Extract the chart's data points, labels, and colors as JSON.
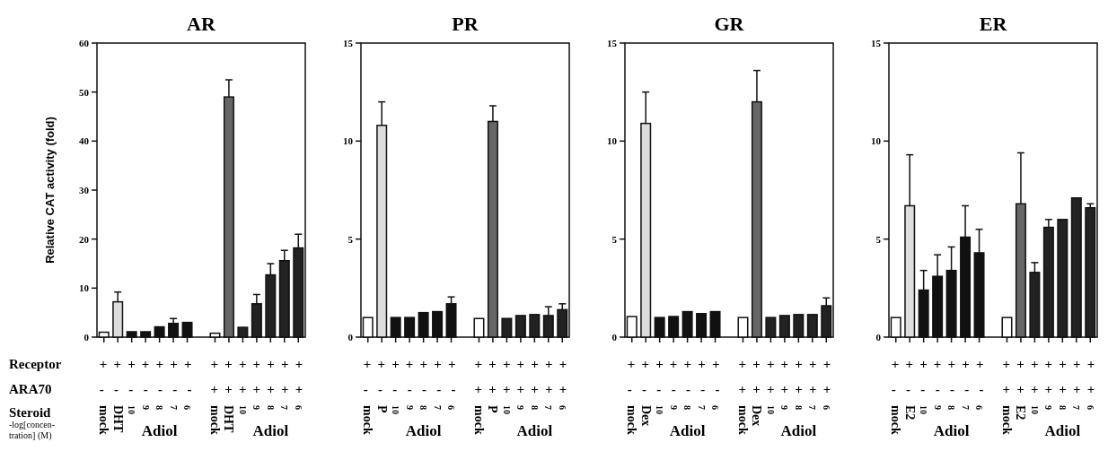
{
  "chart_data": [
    {
      "type": "bar",
      "title": "AR",
      "ylabel": "Relative CAT activity (fold)",
      "categories": [
        "mock",
        "DHT",
        "10",
        "9",
        "8",
        "7",
        "6",
        "mock",
        "DHT",
        "10",
        "9",
        "8",
        "7",
        "6"
      ],
      "values": [
        1.0,
        7.2,
        1.1,
        1.1,
        2.1,
        2.8,
        3.0,
        0.8,
        49,
        2.0,
        6.8,
        12.7,
        15.6,
        18.2
      ],
      "colors": [
        "#ffffff",
        "#dddddd",
        "#111111",
        "#111111",
        "#111111",
        "#111111",
        "#111111",
        "#ffffff",
        "#666666",
        "#222222",
        "#222222",
        "#222222",
        "#222222",
        "#222222"
      ],
      "errors": [
        null,
        [
          7.2,
          9.2
        ],
        null,
        null,
        null,
        [
          2.8,
          3.8
        ],
        null,
        null,
        [
          49,
          52.5
        ],
        null,
        [
          6.8,
          8.7
        ],
        [
          12.7,
          15
        ],
        [
          15.6,
          17.7
        ],
        [
          18.2,
          21
        ]
      ],
      "ylim": [
        0,
        60
      ],
      "yticks": [
        0,
        10,
        20,
        30,
        40,
        50,
        60
      ],
      "annotations": [
        "+ + + + + + +",
        "+ + + + + + +",
        "- - - - - - -",
        "+ + + + + + +",
        "Adiol",
        "Adiol",
        "Receptor",
        "ARA70",
        "Steroid",
        "-log[concen-tration] (M)"
      ]
    },
    {
      "type": "bar",
      "title": "PR",
      "categories": [
        "mock",
        "P",
        "10",
        "9",
        "8",
        "7",
        "6",
        "mock",
        "P",
        "10",
        "9",
        "8",
        "7",
        "6"
      ],
      "values": [
        1.0,
        10.8,
        1.0,
        1.0,
        1.25,
        1.3,
        1.7,
        0.95,
        11.0,
        0.95,
        1.1,
        1.15,
        1.1,
        1.4
      ],
      "colors": [
        "#ffffff",
        "#dddddd",
        "#111111",
        "#111111",
        "#111111",
        "#111111",
        "#111111",
        "#ffffff",
        "#666666",
        "#222222",
        "#222222",
        "#222222",
        "#222222",
        "#222222"
      ],
      "errors": [
        null,
        [
          10.8,
          12
        ],
        null,
        null,
        null,
        null,
        [
          1.7,
          2.05
        ],
        null,
        [
          11.0,
          11.8
        ],
        null,
        null,
        null,
        [
          1.1,
          1.55
        ],
        [
          1.4,
          1.7
        ]
      ],
      "ylim": [
        0,
        15
      ],
      "yticks": [
        0,
        5,
        10,
        15
      ],
      "annotations": [
        "+ + + + + + +",
        "+ + + + + + +",
        "- - - - - - -",
        "+ + + + + + +",
        "Adiol",
        "Adiol"
      ]
    },
    {
      "type": "bar",
      "title": "GR",
      "categories": [
        "mock",
        "Dex",
        "10",
        "9",
        "8",
        "7",
        "6",
        "mock",
        "Dex",
        "10",
        "9",
        "8",
        "7",
        "6"
      ],
      "values": [
        1.05,
        10.9,
        1.0,
        1.05,
        1.3,
        1.2,
        1.3,
        1.0,
        12.0,
        1.0,
        1.1,
        1.15,
        1.15,
        1.6
      ],
      "colors": [
        "#ffffff",
        "#dddddd",
        "#111111",
        "#111111",
        "#111111",
        "#111111",
        "#111111",
        "#ffffff",
        "#666666",
        "#222222",
        "#222222",
        "#222222",
        "#222222",
        "#222222"
      ],
      "errors": [
        null,
        [
          10.9,
          12.5
        ],
        null,
        null,
        null,
        null,
        null,
        null,
        [
          12.0,
          13.6
        ],
        null,
        null,
        null,
        null,
        [
          1.6,
          2.0
        ]
      ],
      "ylim": [
        0,
        15
      ],
      "yticks": [
        0,
        5,
        10,
        15
      ],
      "annotations": [
        "+ + + + + + +",
        "+ + + + + + +",
        "- - - - - - -",
        "+ + + + + + +",
        "Adiol",
        "Adiol"
      ]
    },
    {
      "type": "bar",
      "title": "ER",
      "categories": [
        "mock",
        "E2",
        "10",
        "9",
        "8",
        "7",
        "6",
        "mock",
        "E2",
        "10",
        "9",
        "8",
        "7",
        "6"
      ],
      "values": [
        1.0,
        6.7,
        2.4,
        3.1,
        3.4,
        5.1,
        4.3,
        1.0,
        6.8,
        3.3,
        5.6,
        6.0,
        7.1,
        6.6
      ],
      "colors": [
        "#ffffff",
        "#dddddd",
        "#111111",
        "#111111",
        "#111111",
        "#111111",
        "#111111",
        "#ffffff",
        "#666666",
        "#222222",
        "#222222",
        "#222222",
        "#222222",
        "#222222"
      ],
      "errors": [
        null,
        [
          6.7,
          9.3
        ],
        [
          2.4,
          3.4
        ],
        [
          3.1,
          4.2
        ],
        [
          3.4,
          4.6
        ],
        [
          5.1,
          6.7
        ],
        [
          4.3,
          5.5
        ],
        null,
        [
          6.8,
          9.4
        ],
        [
          3.3,
          3.8
        ],
        [
          5.6,
          6.0
        ],
        null,
        null,
        [
          6.6,
          6.8
        ]
      ],
      "ylim": [
        0,
        15
      ],
      "yticks": [
        0,
        5,
        10,
        15
      ],
      "annotations": [
        "+ + + + + + +",
        "+ + + + + + +",
        "- - - - - - -",
        "+ + + + + + +",
        "Adiol",
        "Adiol"
      ]
    }
  ]
}
